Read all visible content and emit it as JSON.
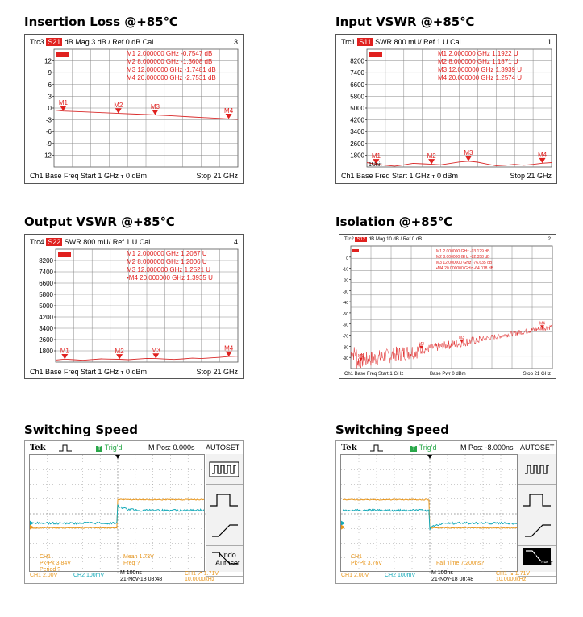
{
  "titles": {
    "il": "Insertion Loss @+85℃",
    "in_vswr": "Input VSWR @+85℃",
    "out_vswr": "Output VSWR @+85℃",
    "iso": "Isolation @+85℃",
    "sw1": "Switching Speed",
    "sw2": "Switching Speed"
  },
  "charts": {
    "il": {
      "type": "line",
      "header": {
        "trc": "Trc3",
        "tag": "S21",
        "rest": "dB Mag  3 dB /  Ref 0 dB   Cal",
        "num": "3"
      },
      "footer": {
        "left": "Ch1   Base Freq   Start  1 GHz  ⲧ   0 dBm",
        "right": "Stop  21 GHz"
      },
      "yticks": [
        "12",
        "9",
        "6",
        "3",
        "0",
        "-3",
        "-6",
        "-9",
        "-12"
      ],
      "ylim": [
        -15,
        15
      ],
      "markers": [
        {
          "name": "M1",
          "x": 2,
          "y": -0.7547,
          "text": "M1    2.000000  GHz   -0.7547  dB"
        },
        {
          "name": "M2",
          "x": 8,
          "y": -1.3608,
          "text": "M2    8.000000  GHz   -1.3608  dB"
        },
        {
          "name": "M3",
          "x": 12,
          "y": -1.7481,
          "text": "M3   12.000000  GHz   -1.7481  dB"
        },
        {
          "name": "M4",
          "x": 20,
          "y": -2.7531,
          "text": "M4   20.000000  GHz   -2.7531  dB"
        }
      ],
      "xlim": [
        1,
        21
      ],
      "trace": [
        [
          1,
          -0.5
        ],
        [
          2,
          -0.75
        ],
        [
          4,
          -0.95
        ],
        [
          6,
          -1.15
        ],
        [
          8,
          -1.36
        ],
        [
          10,
          -1.55
        ],
        [
          12,
          -1.75
        ],
        [
          14,
          -2.0
        ],
        [
          16,
          -2.25
        ],
        [
          18,
          -2.5
        ],
        [
          20,
          -2.75
        ],
        [
          21,
          -2.85
        ]
      ],
      "colors": {
        "trace": "#d92a2a",
        "marker": "#e0211f"
      }
    },
    "in_vswr": {
      "type": "line",
      "header": {
        "trc": "Trc1",
        "tag": "S11",
        "rest": "SWR  800 mU/  Ref 1 U    Cal",
        "num": "1"
      },
      "footer": {
        "left": "Ch1   Base Freq   Start  1 GHz  ⲧ   0 dBm",
        "right": "Stop  21 GHz"
      },
      "yticks": [
        "8200",
        "7400",
        "6600",
        "5800",
        "5000",
        "4200",
        "3400",
        "2600",
        "1800"
      ],
      "ylim": [
        1000,
        9000
      ],
      "markers": [
        {
          "name": "M1",
          "x": 2,
          "y": 1192.2,
          "text": "M1    2.000000  GHz    1.1922  U"
        },
        {
          "name": "M2",
          "x": 8,
          "y": 1187.1,
          "text": "M2    8.000000  GHz    1.1871  U"
        },
        {
          "name": "M3",
          "x": 12,
          "y": 1393.9,
          "text": "M3   12.000000  GHz    1.3939  U"
        },
        {
          "name": "M4",
          "x": 20,
          "y": 1257.4,
          "text": "M4   20.000000  GHz    1.2574  U"
        }
      ],
      "xlim": [
        1,
        21
      ],
      "trace": [
        [
          1,
          1300
        ],
        [
          2,
          1190
        ],
        [
          3,
          1120
        ],
        [
          4,
          1060
        ],
        [
          5,
          1150
        ],
        [
          6,
          1250
        ],
        [
          7,
          1220
        ],
        [
          8,
          1187
        ],
        [
          9,
          1150
        ],
        [
          10,
          1240
        ],
        [
          11,
          1340
        ],
        [
          12,
          1394
        ],
        [
          13,
          1330
        ],
        [
          14,
          1200
        ],
        [
          15,
          1090
        ],
        [
          16,
          1120
        ],
        [
          17,
          1180
        ],
        [
          18,
          1120
        ],
        [
          19,
          1180
        ],
        [
          20,
          1257
        ],
        [
          21,
          1300
        ]
      ],
      "bottom_label": "1Unit",
      "colors": {
        "trace": "#d92a2a",
        "marker": "#e0211f"
      }
    },
    "out_vswr": {
      "type": "line",
      "header": {
        "trc": "Trc4",
        "tag": "S22",
        "rest": "SWR  800 mU/  Ref 1 U    Cal",
        "num": "4"
      },
      "footer": {
        "left": "Ch1   Base Freq   Start  1 GHz  ⲧ   0 dBm",
        "right": "Stop  21 GHz"
      },
      "yticks": [
        "8200",
        "7400",
        "6600",
        "5800",
        "5000",
        "4200",
        "3400",
        "2600",
        "1800"
      ],
      "ylim": [
        1000,
        9000
      ],
      "markers": [
        {
          "name": "M1",
          "x": 2,
          "y": 1208.7,
          "text": "M1    2.000000  GHz    1.2087  U"
        },
        {
          "name": "M2",
          "x": 8,
          "y": 1200.6,
          "text": "M2    8.000000  GHz    1.2006  U"
        },
        {
          "name": "M3",
          "x": 12,
          "y": 1252.1,
          "text": "M3   12.000000  GHz    1.2521  U"
        },
        {
          "name": "M4",
          "x": 20,
          "y": 1393.5,
          "text": "•M4   20.000000  GHz    1.3935  U"
        }
      ],
      "xlim": [
        1,
        21
      ],
      "trace": [
        [
          1,
          1150
        ],
        [
          2,
          1209
        ],
        [
          3,
          1170
        ],
        [
          4,
          1130
        ],
        [
          5,
          1180
        ],
        [
          6,
          1230
        ],
        [
          7,
          1210
        ],
        [
          8,
          1200
        ],
        [
          9,
          1170
        ],
        [
          10,
          1220
        ],
        [
          11,
          1260
        ],
        [
          12,
          1252
        ],
        [
          13,
          1220
        ],
        [
          14,
          1190
        ],
        [
          15,
          1230
        ],
        [
          16,
          1280
        ],
        [
          17,
          1250
        ],
        [
          18,
          1300
        ],
        [
          19,
          1340
        ],
        [
          20,
          1394
        ],
        [
          21,
          1420
        ]
      ],
      "colors": {
        "trace": "#d92a2a",
        "marker": "#e0211f"
      }
    },
    "iso": {
      "type": "line",
      "header": {
        "trc": "Trc2",
        "tag": "S12",
        "rest": "dB Mag  10 dB /  Ref 0 dB",
        "num": "2"
      },
      "footer": {
        "left": "Ch1  Base Freq  Start  1 GHz",
        "mid": "Base Pwr   0 dBm",
        "right": "Stop  21 GHz"
      },
      "yticks": [
        "0",
        "-10",
        "-20",
        "-30",
        "-40",
        "-50",
        "-60",
        "-70",
        "-80",
        "-90"
      ],
      "ylim": [
        -100,
        10
      ],
      "markers": [
        {
          "name": "M1",
          "x": 2,
          "y": -93.129,
          "text": "M1       2.000000       GHz       -93.129      dB"
        },
        {
          "name": "M2",
          "x": 8,
          "y": -82.358,
          "text": "M2       8.000000       GHz       -82.358      dB"
        },
        {
          "name": "M3",
          "x": 12,
          "y": -76.635,
          "text": "M3      12.000000       GHz       -76.635      dB"
        },
        {
          "name": "M4",
          "x": 20,
          "y": -64.018,
          "text": "•M4     20.000000       GHz       -64.018      dB"
        }
      ],
      "xlim": [
        1,
        21
      ],
      "colors": {
        "trace": "#e02a2a",
        "marker": "#e0211f",
        "ref": "#e0211f"
      }
    }
  },
  "scope1": {
    "brand": "Tek",
    "trig": "Trig'd",
    "mpos": "M Pos: 0.000s",
    "autoset": "AUTOSET",
    "undo": "Undo\nAutoset",
    "ch1_meas_title": "CH1",
    "ch1_pkpk": "Pk-Pk 3.84V",
    "ch1_period": "Period ?",
    "mean": "Mean 1.73V",
    "freq": "Freq ?",
    "ch1_scale": "CH1  2.00V",
    "ch2_scale": "CH2  100mV",
    "timebase": "M 100ns",
    "date": "21-Nov-18 08:48",
    "trig_level": "CH1  ↗ 1.71V",
    "trig_freq": "10.0000kHz",
    "edge": "rise",
    "colors": {
      "ch1": "#e8961c",
      "ch2": "#14a9b8"
    }
  },
  "scope2": {
    "brand": "Tek",
    "trig": "Trig'd",
    "mpos": "M Pos: -8.000ns",
    "autoset": "AUTOSET",
    "undo": "Undo\nAutoset",
    "ch1_meas_title": "CH1",
    "ch1_pkpk": "Pk-Pk 3.76V",
    "fall": "Fall Time 7.200ns?",
    "ch1_scale": "CH1  2.00V",
    "ch2_scale": "CH2  100mV",
    "timebase": "M 100ns",
    "date": "21-Nov-18 08:48",
    "trig_level": "CH1  ↘ 1.71V",
    "trig_freq": "10.0000kHz",
    "edge": "fall",
    "colors": {
      "ch1": "#e8961c",
      "ch2": "#14a9b8"
    }
  }
}
